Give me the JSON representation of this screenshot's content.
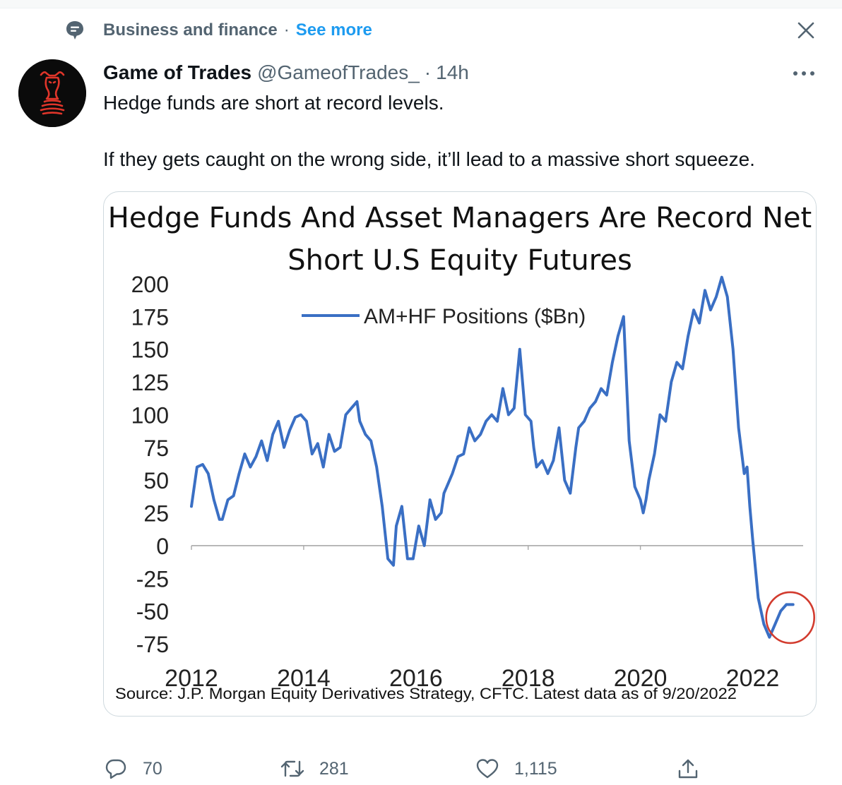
{
  "context": {
    "icon": "topic-bubble-icon",
    "topic": "Business and finance",
    "separator": "·",
    "see_more": "See more"
  },
  "tweet": {
    "display_name": "Game of Trades",
    "handle": "@GameofTrades_",
    "separator": "·",
    "time": "14h",
    "text": [
      "Hedge funds are short at record levels.",
      "If they gets caught on the wrong side, it’ll lead to a massive short squeeze."
    ],
    "stats": {
      "replies": "70",
      "retweets": "281",
      "likes": "1,115"
    }
  },
  "icons": {
    "close": "close-icon",
    "more": "more-horizontal-icon",
    "reply": "reply-icon",
    "retweet": "retweet-icon",
    "like": "heart-icon",
    "share": "share-icon"
  },
  "colors": {
    "accent": "#1d9bf0",
    "secondary_text": "#536471",
    "series_line": "#3a6fc4",
    "highlight_circle": "#d23b2e"
  },
  "chart_data": {
    "type": "line",
    "title": "Hedge Funds And Asset Managers Are Record Net Short U.S Equity Futures",
    "title_lines": [
      "Hedge Funds And Asset Managers Are Record Net",
      "Short U.S Equity Futures"
    ],
    "xlabel": "",
    "ylabel": "",
    "x_ticks": [
      "2012",
      "2014",
      "2016",
      "2018",
      "2020",
      "2022"
    ],
    "y_ticks": [
      "200",
      "175",
      "150",
      "125",
      "100",
      "75",
      "50",
      "25",
      "0",
      "-25",
      "-50",
      "-75"
    ],
    "xlim": [
      2012.0,
      2022.9
    ],
    "ylim": [
      -75,
      200
    ],
    "grid": false,
    "zero_line": true,
    "legend": {
      "position": "top-center",
      "entries": [
        "AM+HF Positions ($Bn)"
      ]
    },
    "source": "Source: J.P. Morgan Equity Derivatives Strategy, CFTC. Latest data as of 9/20/2022",
    "annotation": "circle around latest values (2022)",
    "series": [
      {
        "name": "AM+HF Positions ($Bn)",
        "x": [
          2012.0,
          2012.1,
          2012.2,
          2012.3,
          2012.4,
          2012.5,
          2012.55,
          2012.65,
          2012.75,
          2012.85,
          2012.95,
          2013.05,
          2013.15,
          2013.25,
          2013.35,
          2013.45,
          2013.55,
          2013.65,
          2013.75,
          2013.85,
          2013.95,
          2014.05,
          2014.15,
          2014.25,
          2014.35,
          2014.45,
          2014.55,
          2014.65,
          2014.75,
          2014.85,
          2014.95,
          2015.0,
          2015.1,
          2015.2,
          2015.3,
          2015.4,
          2015.5,
          2015.6,
          2015.65,
          2015.75,
          2015.85,
          2015.95,
          2016.05,
          2016.15,
          2016.25,
          2016.35,
          2016.45,
          2016.5,
          2016.55,
          2016.65,
          2016.75,
          2016.85,
          2016.95,
          2017.05,
          2017.15,
          2017.25,
          2017.35,
          2017.45,
          2017.55,
          2017.65,
          2017.75,
          2017.85,
          2017.95,
          2018.05,
          2018.1,
          2018.15,
          2018.25,
          2018.35,
          2018.45,
          2018.55,
          2018.65,
          2018.75,
          2018.85,
          2018.9,
          2019.0,
          2019.1,
          2019.2,
          2019.3,
          2019.4,
          2019.5,
          2019.6,
          2019.7,
          2019.8,
          2019.9,
          2020.0,
          2020.05,
          2020.1,
          2020.15,
          2020.25,
          2020.35,
          2020.45,
          2020.55,
          2020.65,
          2020.75,
          2020.85,
          2020.95,
          2021.05,
          2021.15,
          2021.25,
          2021.35,
          2021.45,
          2021.55,
          2021.65,
          2021.75,
          2021.85,
          2021.9,
          2021.95,
          2022.0,
          2022.1,
          2022.2,
          2022.3,
          2022.4,
          2022.5,
          2022.6,
          2022.7,
          2022.72
        ],
        "values": [
          30,
          60,
          62,
          55,
          35,
          20,
          20,
          35,
          38,
          55,
          70,
          60,
          68,
          80,
          65,
          85,
          95,
          75,
          88,
          98,
          100,
          95,
          70,
          78,
          60,
          85,
          72,
          75,
          100,
          105,
          110,
          95,
          85,
          80,
          60,
          30,
          -10,
          -15,
          15,
          30,
          -10,
          -10,
          15,
          0,
          35,
          20,
          25,
          40,
          45,
          55,
          68,
          70,
          90,
          80,
          85,
          95,
          100,
          95,
          120,
          100,
          105,
          150,
          100,
          95,
          75,
          60,
          65,
          55,
          65,
          90,
          50,
          40,
          75,
          90,
          95,
          105,
          110,
          120,
          115,
          140,
          160,
          175,
          80,
          45,
          35,
          25,
          35,
          50,
          70,
          100,
          95,
          125,
          140,
          135,
          160,
          180,
          170,
          195,
          180,
          190,
          205,
          190,
          150,
          90,
          55,
          60,
          30,
          5,
          -40,
          -60,
          -70,
          -60,
          -50,
          -45,
          -45,
          -45
        ]
      }
    ]
  }
}
